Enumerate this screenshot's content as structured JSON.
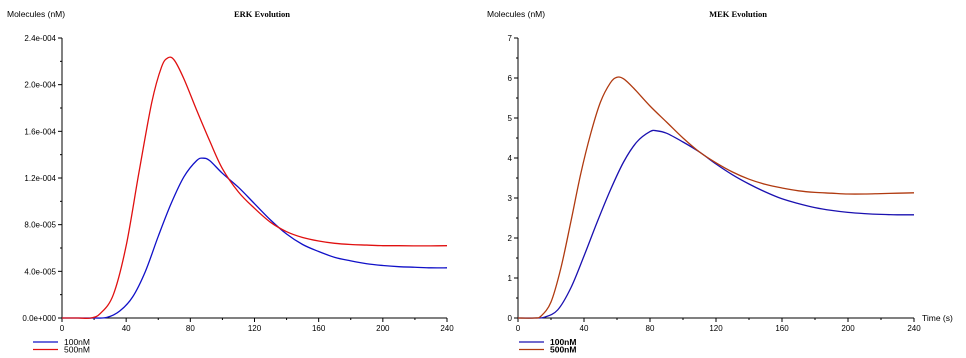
{
  "chart_data": [
    {
      "type": "line",
      "title": "ERK Evolution",
      "ylabel": "Molecules (nM)",
      "xlabel": "",
      "xlim": [
        0,
        240
      ],
      "ylim": [
        0,
        0.00024
      ],
      "x_ticks": [
        0,
        40,
        80,
        120,
        160,
        200,
        240
      ],
      "x_tick_labels": [
        "0",
        "40",
        "80",
        "120",
        "160",
        "200",
        "240"
      ],
      "y_ticks": [
        0,
        4e-05,
        8e-05,
        0.00012,
        0.00016,
        0.0002,
        0.00024
      ],
      "y_tick_labels": [
        "0.0e+000",
        "4.0e-005",
        "8.0e-005",
        "1.2e-004",
        "1.6e-004",
        "2.0e-004",
        "2.4e-004"
      ],
      "grid": false,
      "legend": "bottom-left",
      "series": [
        {
          "name": "100nM",
          "color": "#1010c8",
          "x": [
            0,
            10,
            20,
            28,
            36,
            44,
            52,
            60,
            68,
            76,
            84,
            88,
            92,
            100,
            110,
            120,
            130,
            140,
            150,
            160,
            170,
            180,
            190,
            200,
            210,
            220,
            230,
            240
          ],
          "y": [
            0,
            0,
            0,
            5e-07,
            6e-06,
            1.8e-05,
            4e-05,
            7e-05,
            9.8e-05,
            0.000121,
            0.000135,
            0.000137,
            0.000135,
            0.000124,
            0.000112,
            9.8e-05,
            8.4e-05,
            7.2e-05,
            6.3e-05,
            5.7e-05,
            5.2e-05,
            4.9e-05,
            4.65e-05,
            4.5e-05,
            4.4e-05,
            4.35e-05,
            4.3e-05,
            4.3e-05
          ]
        },
        {
          "name": "500nM",
          "color": "#e01010",
          "x": [
            0,
            10,
            18,
            24,
            32,
            40,
            48,
            56,
            62,
            66,
            70,
            76,
            84,
            92,
            100,
            110,
            120,
            130,
            140,
            150,
            160,
            170,
            180,
            190,
            200,
            210,
            220,
            230,
            240
          ],
          "y": [
            0,
            0,
            0,
            4e-06,
            2e-05,
            6.2e-05,
            0.000125,
            0.000185,
            0.000215,
            0.000223,
            0.000221,
            0.000205,
            0.000178,
            0.000152,
            0.000128,
            0.000108,
            9.4e-05,
            8.2e-05,
            7.4e-05,
            6.9e-05,
            6.6e-05,
            6.4e-05,
            6.3e-05,
            6.25e-05,
            6.2e-05,
            6.2e-05,
            6.18e-05,
            6.18e-05,
            6.2e-05
          ]
        }
      ]
    },
    {
      "type": "line",
      "title": "MEK Evolution",
      "ylabel": "Molecules (nM)",
      "xlabel": "Time (s)",
      "xlim": [
        0,
        240
      ],
      "ylim": [
        0,
        7
      ],
      "x_ticks": [
        0,
        40,
        80,
        120,
        160,
        200,
        240
      ],
      "x_tick_labels": [
        "0",
        "40",
        "80",
        "120",
        "160",
        "200",
        "240"
      ],
      "y_ticks": [
        0,
        1,
        2,
        3,
        4,
        5,
        6,
        7
      ],
      "y_tick_labels": [
        "0",
        "1",
        "2",
        "3",
        "4",
        "5",
        "6",
        "7"
      ],
      "grid": false,
      "legend": "bottom-left",
      "series": [
        {
          "name": "100nM",
          "color": "#1a10b0",
          "x": [
            0,
            10,
            16,
            24,
            32,
            40,
            48,
            56,
            64,
            72,
            80,
            84,
            90,
            100,
            110,
            120,
            130,
            140,
            150,
            160,
            170,
            180,
            190,
            200,
            210,
            220,
            230,
            240
          ],
          "y": [
            0,
            0,
            0.02,
            0.2,
            0.75,
            1.55,
            2.4,
            3.2,
            3.9,
            4.4,
            4.66,
            4.68,
            4.62,
            4.4,
            4.15,
            3.85,
            3.58,
            3.35,
            3.15,
            2.98,
            2.86,
            2.76,
            2.69,
            2.64,
            2.61,
            2.59,
            2.58,
            2.58
          ]
        },
        {
          "name": "500nM",
          "color": "#b03a10",
          "x": [
            0,
            10,
            14,
            20,
            26,
            32,
            38,
            44,
            50,
            56,
            60,
            64,
            70,
            80,
            90,
            100,
            110,
            120,
            130,
            140,
            150,
            160,
            170,
            180,
            190,
            200,
            210,
            220,
            230,
            240
          ],
          "y": [
            0,
            0,
            0.05,
            0.4,
            1.25,
            2.4,
            3.6,
            4.6,
            5.4,
            5.88,
            6.02,
            5.98,
            5.75,
            5.3,
            4.9,
            4.5,
            4.15,
            3.88,
            3.65,
            3.47,
            3.34,
            3.25,
            3.18,
            3.14,
            3.12,
            3.1,
            3.1,
            3.11,
            3.12,
            3.13
          ]
        }
      ]
    }
  ]
}
